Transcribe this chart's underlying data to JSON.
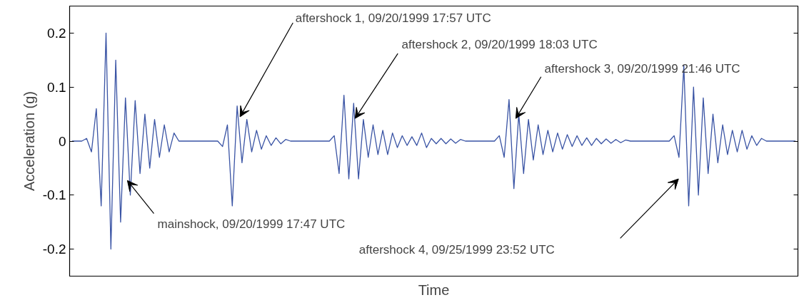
{
  "chart_data": {
    "type": "line",
    "xlabel": "Time",
    "ylabel": "Acceleration (g)",
    "categories": [
      null,
      null,
      null,
      null,
      null,
      null,
      null,
      null,
      null,
      null,
      null,
      null,
      null,
      null,
      null,
      null,
      null,
      null,
      null,
      null,
      null,
      null,
      null,
      null,
      null,
      null,
      null,
      null,
      null,
      null,
      null,
      null,
      null,
      null,
      null,
      null,
      null,
      null,
      null,
      null,
      null,
      null,
      null,
      null,
      null,
      null,
      null,
      null,
      null,
      null,
      null,
      null,
      null,
      null,
      null,
      null,
      null,
      null,
      null,
      null,
      null,
      null,
      null,
      null,
      null,
      null,
      null,
      null,
      null,
      null,
      null,
      null,
      null,
      null,
      null,
      null,
      null,
      null,
      null,
      null,
      null,
      null,
      null,
      null,
      null,
      null,
      null,
      null,
      null,
      null,
      null,
      null,
      null,
      null,
      null,
      null,
      null,
      null,
      null,
      null,
      null,
      null,
      null,
      null,
      null,
      null,
      null,
      null,
      null,
      null,
      null,
      null,
      null,
      null,
      null,
      null,
      null,
      null,
      null,
      null,
      null,
      null,
      null,
      null,
      null,
      null,
      null,
      null,
      null,
      null,
      null,
      null,
      null,
      null,
      null,
      null,
      null,
      null,
      null,
      null,
      null,
      null,
      null,
      null,
      null,
      null,
      null,
      null,
      null,
      null
    ],
    "series": [
      {
        "color": "#3953a4",
        "values": [
          0,
          0,
          0,
          0.005,
          -0.02,
          0.06,
          -0.12,
          0.2,
          -0.2,
          0.15,
          -0.15,
          0.08,
          -0.1,
          0.075,
          -0.06,
          0.05,
          -0.05,
          0.04,
          -0.03,
          0.03,
          -0.02,
          0.015,
          0,
          0,
          0,
          0,
          0,
          0,
          0,
          0,
          0,
          -0.01,
          0.03,
          -0.12,
          0.065,
          -0.04,
          0.04,
          -0.02,
          0.02,
          -0.015,
          0.01,
          -0.008,
          0.006,
          -0.005,
          0.003,
          0,
          0,
          0,
          0,
          0,
          0,
          0,
          0,
          0,
          0.01,
          -0.06,
          0.085,
          -0.07,
          0.07,
          -0.07,
          0.04,
          -0.03,
          0.03,
          -0.025,
          0.02,
          -0.025,
          0.015,
          -0.012,
          0.01,
          -0.008,
          0.008,
          -0.008,
          0.015,
          -0.012,
          0.005,
          -0.005,
          0.005,
          -0.005,
          0.004,
          -0.004,
          0.003,
          0,
          0,
          0,
          0,
          0,
          0,
          0,
          0.01,
          -0.03,
          0.077,
          -0.088,
          0.05,
          -0.06,
          0.04,
          -0.035,
          0.03,
          -0.025,
          0.02,
          -0.02,
          0.015,
          -0.015,
          0.012,
          -0.01,
          0.01,
          -0.008,
          0.006,
          -0.008,
          0.005,
          -0.005,
          0.004,
          -0.004,
          0.003,
          -0.003,
          0.002,
          0,
          0,
          0,
          0,
          0,
          0,
          0,
          0,
          0,
          0.01,
          -0.03,
          0.14,
          -0.12,
          0.1,
          -0.1,
          0.08,
          -0.06,
          0.05,
          -0.04,
          0.03,
          -0.025,
          0.02,
          -0.02,
          0.02,
          -0.015,
          0.01,
          -0.008,
          0.005,
          0,
          0,
          0,
          0,
          0,
          0,
          0
        ]
      }
    ],
    "ylim": [
      -0.25,
      0.25
    ],
    "yticks": [
      -0.2,
      -0.1,
      0,
      0.1,
      0.2
    ],
    "tick_labels": "y",
    "grid": false,
    "annotations": [
      "mainshock, 09/20/1999 17:47 UTC",
      "aftershock 1, 09/20/1999 17:57 UTC",
      "aftershock 2, 09/20/1999 18:03 UTC",
      "aftershock 3, 09/20/1999 21:46 UTC",
      "aftershock 4, 09/25/1999 23:52 UTC"
    ]
  }
}
